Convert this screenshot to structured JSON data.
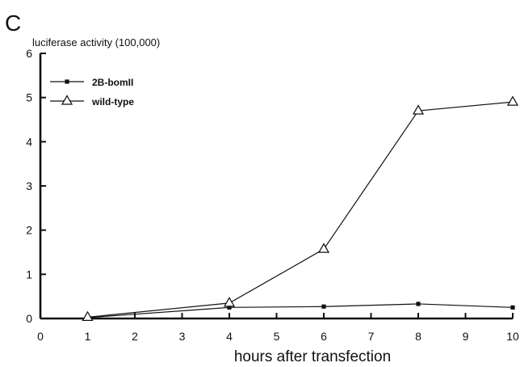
{
  "panel_label": "C",
  "chart_data": {
    "type": "line",
    "title": "",
    "xlabel": "hours after transfection",
    "ylabel": "luciferase activity  (100,000)",
    "xlim": [
      0,
      10
    ],
    "ylim": [
      0,
      6
    ],
    "x_ticks": [
      0,
      1,
      2,
      3,
      4,
      5,
      6,
      7,
      8,
      9,
      10
    ],
    "y_ticks": [
      0,
      1,
      2,
      3,
      4,
      5,
      6
    ],
    "grid": false,
    "legend_position": "top-left",
    "series": [
      {
        "name": "2B-bomII",
        "marker": "square",
        "color": "#111111",
        "x": [
          1,
          4,
          6,
          8,
          10
        ],
        "y": [
          0.02,
          0.25,
          0.27,
          0.33,
          0.25
        ]
      },
      {
        "name": "wild-type",
        "marker": "triangle-open",
        "color": "#111111",
        "x": [
          1,
          4,
          6,
          8,
          10
        ],
        "y": [
          0.03,
          0.35,
          1.57,
          4.7,
          4.9
        ]
      }
    ]
  }
}
